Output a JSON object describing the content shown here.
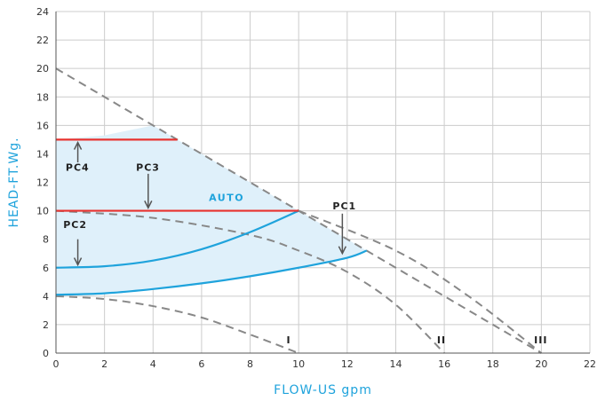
{
  "chart_data": {
    "type": "line",
    "xlabel": "FLOW-US gpm",
    "ylabel": "HEAD-FT.Wg.",
    "xlim": [
      0,
      22
    ],
    "ylim": [
      0,
      24
    ],
    "x_ticks": [
      "0",
      "2",
      "4",
      "6",
      "8",
      "10",
      "12",
      "14",
      "16",
      "18",
      "20",
      "22"
    ],
    "y_ticks": [
      "0",
      "2",
      "4",
      "6",
      "8",
      "10",
      "12",
      "14",
      "16",
      "18",
      "20",
      "22",
      "24"
    ],
    "grid": true,
    "series": [
      {
        "key": "max",
        "style": "dashed",
        "color": "#888888",
        "x": [
          0,
          4,
          10,
          16,
          20
        ],
        "y": [
          20,
          16,
          10,
          4,
          0
        ]
      },
      {
        "key": "sys1",
        "name": "I",
        "style": "dashed",
        "color": "#888888",
        "x": [
          0,
          2,
          4,
          6,
          8,
          10
        ],
        "y": [
          4,
          3.8,
          3.3,
          2.5,
          1.3,
          0
        ]
      },
      {
        "key": "sys2",
        "name": "II",
        "style": "dashed",
        "color": "#888888",
        "x": [
          0,
          4,
          8,
          10,
          12,
          14,
          16
        ],
        "y": [
          10,
          9.5,
          8.3,
          7.2,
          5.7,
          3.4,
          0
        ]
      },
      {
        "key": "sys3",
        "name": "III",
        "style": "dashed",
        "color": "#888888",
        "x": [
          10,
          14,
          17,
          20
        ],
        "y": [
          10,
          7.2,
          4,
          0
        ]
      },
      {
        "key": "auto_hi",
        "style": "solid",
        "color": "#1fa3dc",
        "x": [
          0,
          2,
          4,
          6,
          8,
          10
        ],
        "y": [
          6,
          6.1,
          6.5,
          7.3,
          8.5,
          10
        ]
      },
      {
        "key": "auto_lo",
        "style": "solid",
        "color": "#1fa3dc",
        "x": [
          0,
          2,
          4,
          6,
          8,
          10,
          12,
          12.8
        ],
        "y": [
          4.1,
          4.2,
          4.5,
          4.9,
          5.4,
          6,
          6.7,
          7.2
        ]
      },
      {
        "key": "pc_const_hi",
        "style": "solid",
        "color": "#e8322f",
        "x": [
          0,
          5
        ],
        "y": [
          15,
          15
        ]
      },
      {
        "key": "pc_const_lo",
        "style": "solid",
        "color": "#e8322f",
        "x": [
          0,
          10
        ],
        "y": [
          10,
          10
        ]
      }
    ],
    "annotations": {
      "pc4": "PC4",
      "pc3": "PC3",
      "pc2": "PC2",
      "pc1": "PC1",
      "auto": "AUTO",
      "sys1": "I",
      "sys2": "II",
      "sys3": "III"
    },
    "colors": {
      "grid": "#cccccc",
      "axis": "#555555",
      "fill": "#dff0fa",
      "accent": "#1fa3dc",
      "red": "#e8322f",
      "dash": "#888888",
      "arrow": "#555555"
    }
  }
}
